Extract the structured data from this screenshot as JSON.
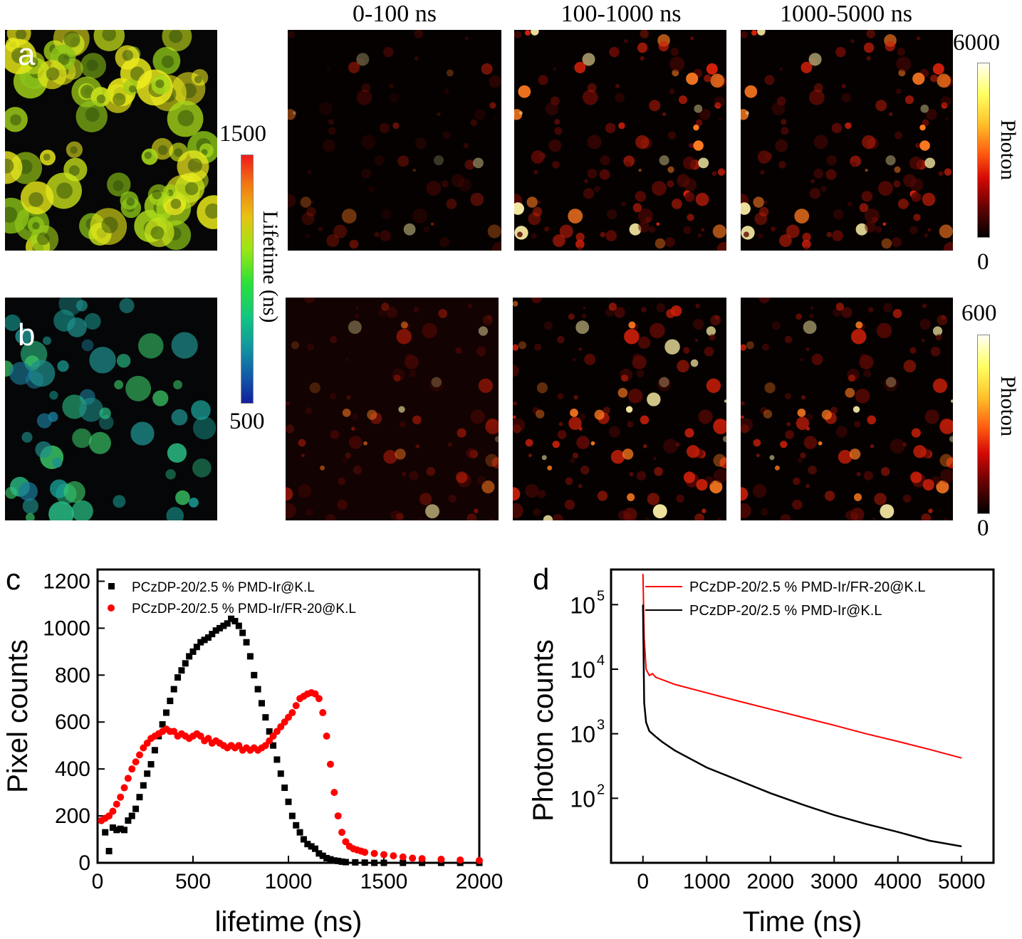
{
  "figure": {
    "panel_labels": {
      "a": "a",
      "b": "b",
      "c": "c",
      "d": "d"
    },
    "column_titles": [
      "0-100 ns",
      "100-1000 ns",
      "1000-5000 ns"
    ],
    "lifetime_bar": {
      "max": "1500",
      "min": "500",
      "label": "Lifetime (ns)"
    },
    "photon_bar_top": {
      "max": "6000",
      "min": "0",
      "label": "Photon"
    },
    "photon_bar_bottom": {
      "max": "600",
      "min": "0",
      "label": "Photon"
    }
  },
  "colors": {
    "black_series": "#000000",
    "red_series": "#ff0000",
    "heat_dark": "#050101",
    "heat_hot": "#ff2a00"
  },
  "chart_data": [
    {
      "type": "scatter",
      "panel": "c",
      "xlabel": "lifetime (ns)",
      "ylabel": "Pixel counts",
      "xlim": [
        0,
        2000
      ],
      "ylim": [
        0,
        1250
      ],
      "xticks": [
        0,
        500,
        1000,
        1500,
        2000
      ],
      "yticks": [
        0,
        200,
        400,
        600,
        800,
        1000,
        1200
      ],
      "legend_position": "top",
      "series": [
        {
          "name": "PCzDP-20/2.5 % PMD-Ir@K.L",
          "color": "#000000",
          "marker": "square",
          "x": [
            40,
            60,
            80,
            100,
            120,
            140,
            160,
            180,
            200,
            220,
            240,
            260,
            280,
            300,
            320,
            340,
            360,
            380,
            400,
            420,
            440,
            460,
            480,
            500,
            520,
            540,
            560,
            580,
            600,
            620,
            640,
            660,
            680,
            700,
            720,
            740,
            760,
            780,
            800,
            820,
            840,
            860,
            880,
            900,
            920,
            940,
            960,
            980,
            1000,
            1020,
            1040,
            1060,
            1080,
            1100,
            1120,
            1140,
            1160,
            1180,
            1200,
            1220,
            1240,
            1260,
            1280,
            1300,
            1350,
            1400,
            1450,
            1500,
            1600,
            1700,
            1800,
            1900,
            2000
          ],
          "y": [
            130,
            50,
            150,
            140,
            145,
            140,
            180,
            200,
            230,
            280,
            330,
            380,
            420,
            480,
            540,
            590,
            640,
            690,
            740,
            790,
            820,
            850,
            880,
            900,
            920,
            940,
            950,
            960,
            975,
            990,
            1000,
            1010,
            1020,
            1040,
            1030,
            1010,
            980,
            940,
            880,
            800,
            740,
            680,
            620,
            560,
            500,
            440,
            380,
            320,
            260,
            200,
            160,
            130,
            100,
            80,
            70,
            60,
            40,
            30,
            20,
            15,
            10,
            8,
            5,
            3,
            2,
            1,
            0,
            0,
            0,
            0,
            0,
            0,
            0
          ]
        },
        {
          "name": "PCzDP-20/2.5 % PMD-Ir/FR-20@K.L",
          "color": "#ff0000",
          "marker": "circle",
          "x": [
            20,
            40,
            60,
            80,
            100,
            120,
            140,
            160,
            180,
            200,
            220,
            240,
            260,
            280,
            300,
            320,
            340,
            360,
            380,
            400,
            420,
            440,
            460,
            480,
            500,
            520,
            540,
            560,
            580,
            600,
            620,
            640,
            660,
            680,
            700,
            720,
            740,
            760,
            780,
            800,
            820,
            840,
            860,
            880,
            900,
            920,
            940,
            960,
            980,
            1000,
            1020,
            1040,
            1060,
            1080,
            1100,
            1120,
            1140,
            1160,
            1180,
            1200,
            1220,
            1240,
            1260,
            1280,
            1300,
            1320,
            1340,
            1360,
            1380,
            1400,
            1450,
            1500,
            1550,
            1600,
            1650,
            1700,
            1800,
            1900,
            2000
          ],
          "y": [
            180,
            190,
            200,
            220,
            250,
            280,
            320,
            360,
            400,
            430,
            460,
            490,
            510,
            530,
            540,
            550,
            560,
            570,
            560,
            560,
            540,
            550,
            540,
            530,
            540,
            550,
            540,
            520,
            530,
            510,
            520,
            510,
            500,
            490,
            500,
            490,
            500,
            480,
            490,
            480,
            490,
            480,
            490,
            500,
            520,
            540,
            560,
            580,
            600,
            620,
            640,
            670,
            700,
            710,
            720,
            725,
            720,
            700,
            640,
            540,
            420,
            300,
            200,
            130,
            90,
            70,
            60,
            55,
            50,
            45,
            40,
            35,
            30,
            25,
            20,
            18,
            15,
            12,
            10
          ]
        }
      ]
    },
    {
      "type": "line",
      "panel": "d",
      "xlabel": "Time (ns)",
      "ylabel": "Photon counts",
      "yscale": "log",
      "xlim": [
        -500,
        5500
      ],
      "ylim": [
        10,
        350000
      ],
      "xticks": [
        0,
        1000,
        2000,
        3000,
        4000,
        5000
      ],
      "yticks": [
        "10^2",
        "10^3",
        "10^4",
        "10^5"
      ],
      "legend_position": "top-right",
      "series": [
        {
          "name": "PCzDP-20/2.5 % PMD-Ir/FR-20@K.L",
          "color": "#ff0000",
          "x": [
            0,
            20,
            50,
            100,
            150,
            200,
            500,
            1000,
            1500,
            2000,
            2500,
            3000,
            3500,
            4000,
            4500,
            5000
          ],
          "y": [
            300000,
            30000,
            10000,
            8000,
            8500,
            7500,
            5800,
            4300,
            3200,
            2400,
            1800,
            1350,
            1000,
            760,
            570,
            420
          ]
        },
        {
          "name": "PCzDP-20/2.5 % PMD-Ir@K.L",
          "color": "#000000",
          "x": [
            0,
            20,
            50,
            100,
            200,
            300,
            500,
            1000,
            1500,
            2000,
            2500,
            3000,
            3500,
            4000,
            4500,
            5000
          ],
          "y": [
            100000,
            3000,
            1500,
            1100,
            900,
            750,
            550,
            300,
            190,
            120,
            80,
            55,
            40,
            30,
            22,
            18
          ]
        }
      ]
    }
  ]
}
